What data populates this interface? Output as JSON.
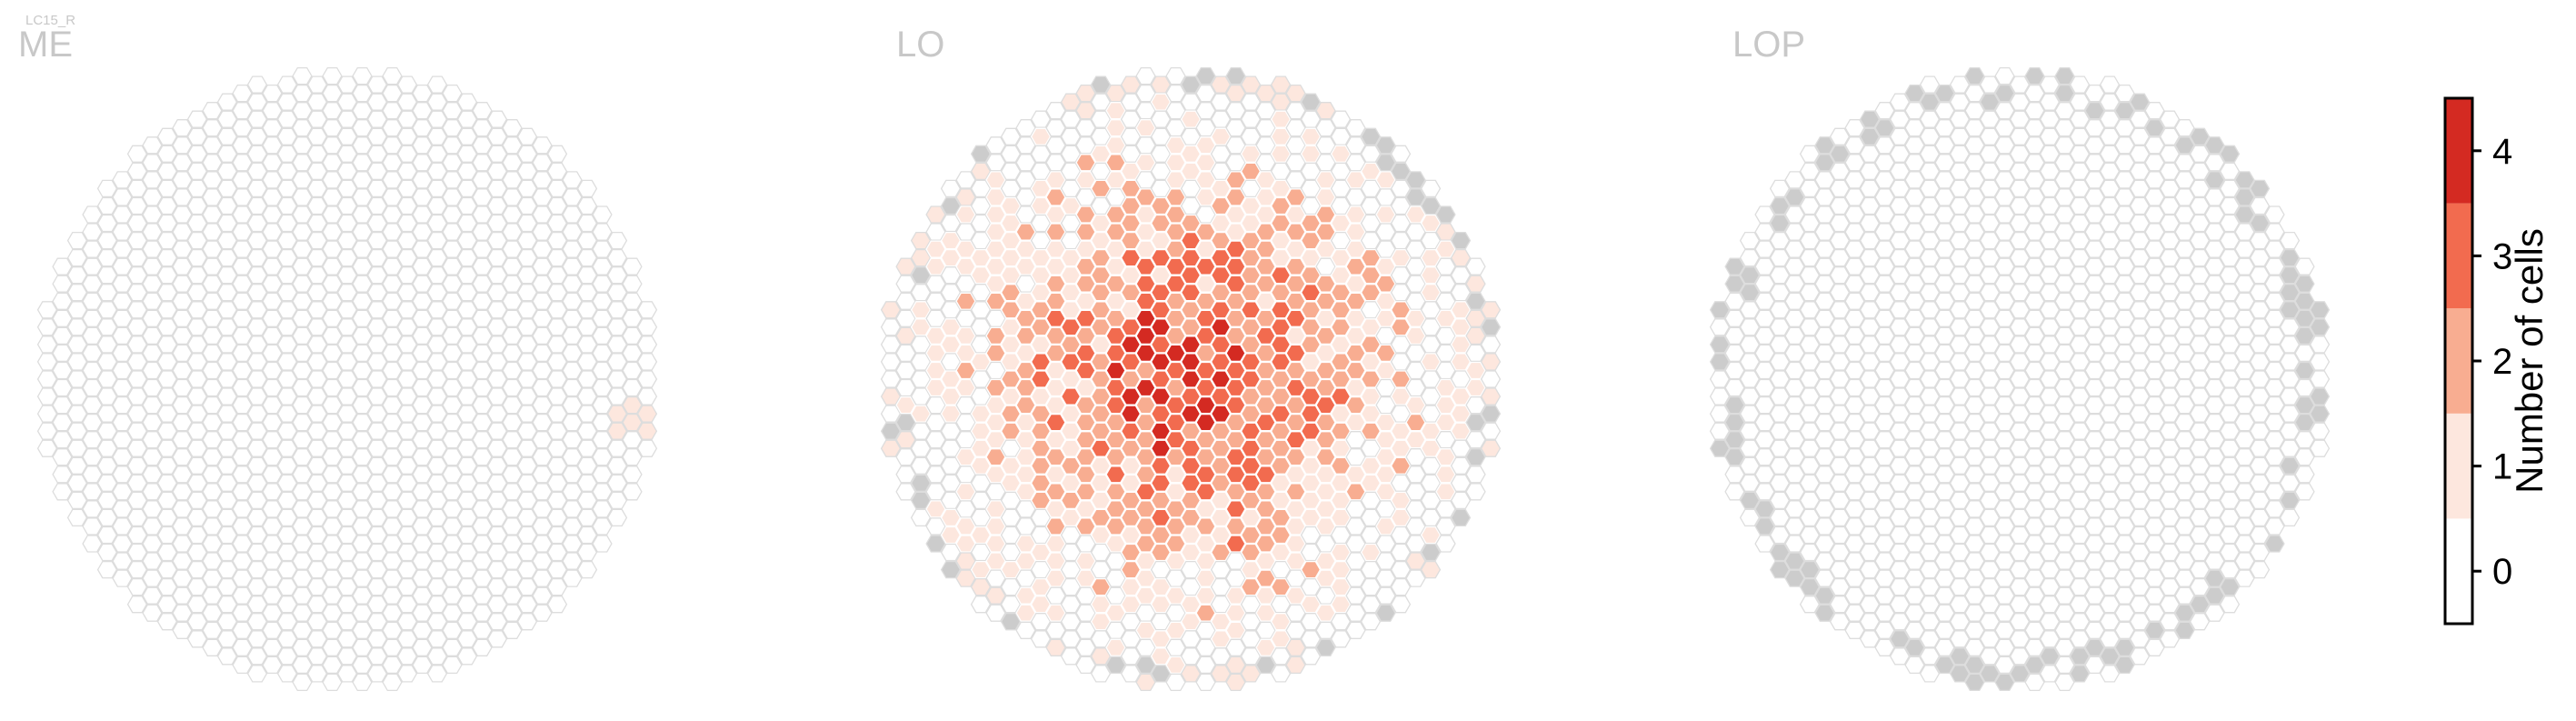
{
  "cell_type_label": "LC15_R",
  "colors": {
    "empty_fill": "#ffffff",
    "empty_stroke": "#dddddd",
    "no_column_fill": "#cccccc",
    "levels": [
      "#ffffff",
      "#fde7de",
      "#f8ad91",
      "#f26b4f",
      "#d42a22"
    ]
  },
  "chart_data": {
    "type": "heatmap",
    "layout": "hexagonal column maps",
    "panels": [
      {
        "name": "ME",
        "extra_cells": 2,
        "strong_cells": 0,
        "gray_cells": 0
      },
      {
        "name": "LO",
        "extra_cells": 640,
        "strong_cells": 0,
        "gray_cells": 26
      },
      {
        "name": "LOP",
        "extra_cells": 0,
        "strong_cells": 0,
        "gray_cells": 70
      }
    ],
    "colorbar": {
      "title": "Number of cells",
      "ticks": [
        "0",
        "1",
        "2",
        "3",
        "4"
      ],
      "values": [
        0,
        1,
        2,
        3,
        4
      ],
      "range": [
        -0.5,
        4.5
      ]
    }
  }
}
